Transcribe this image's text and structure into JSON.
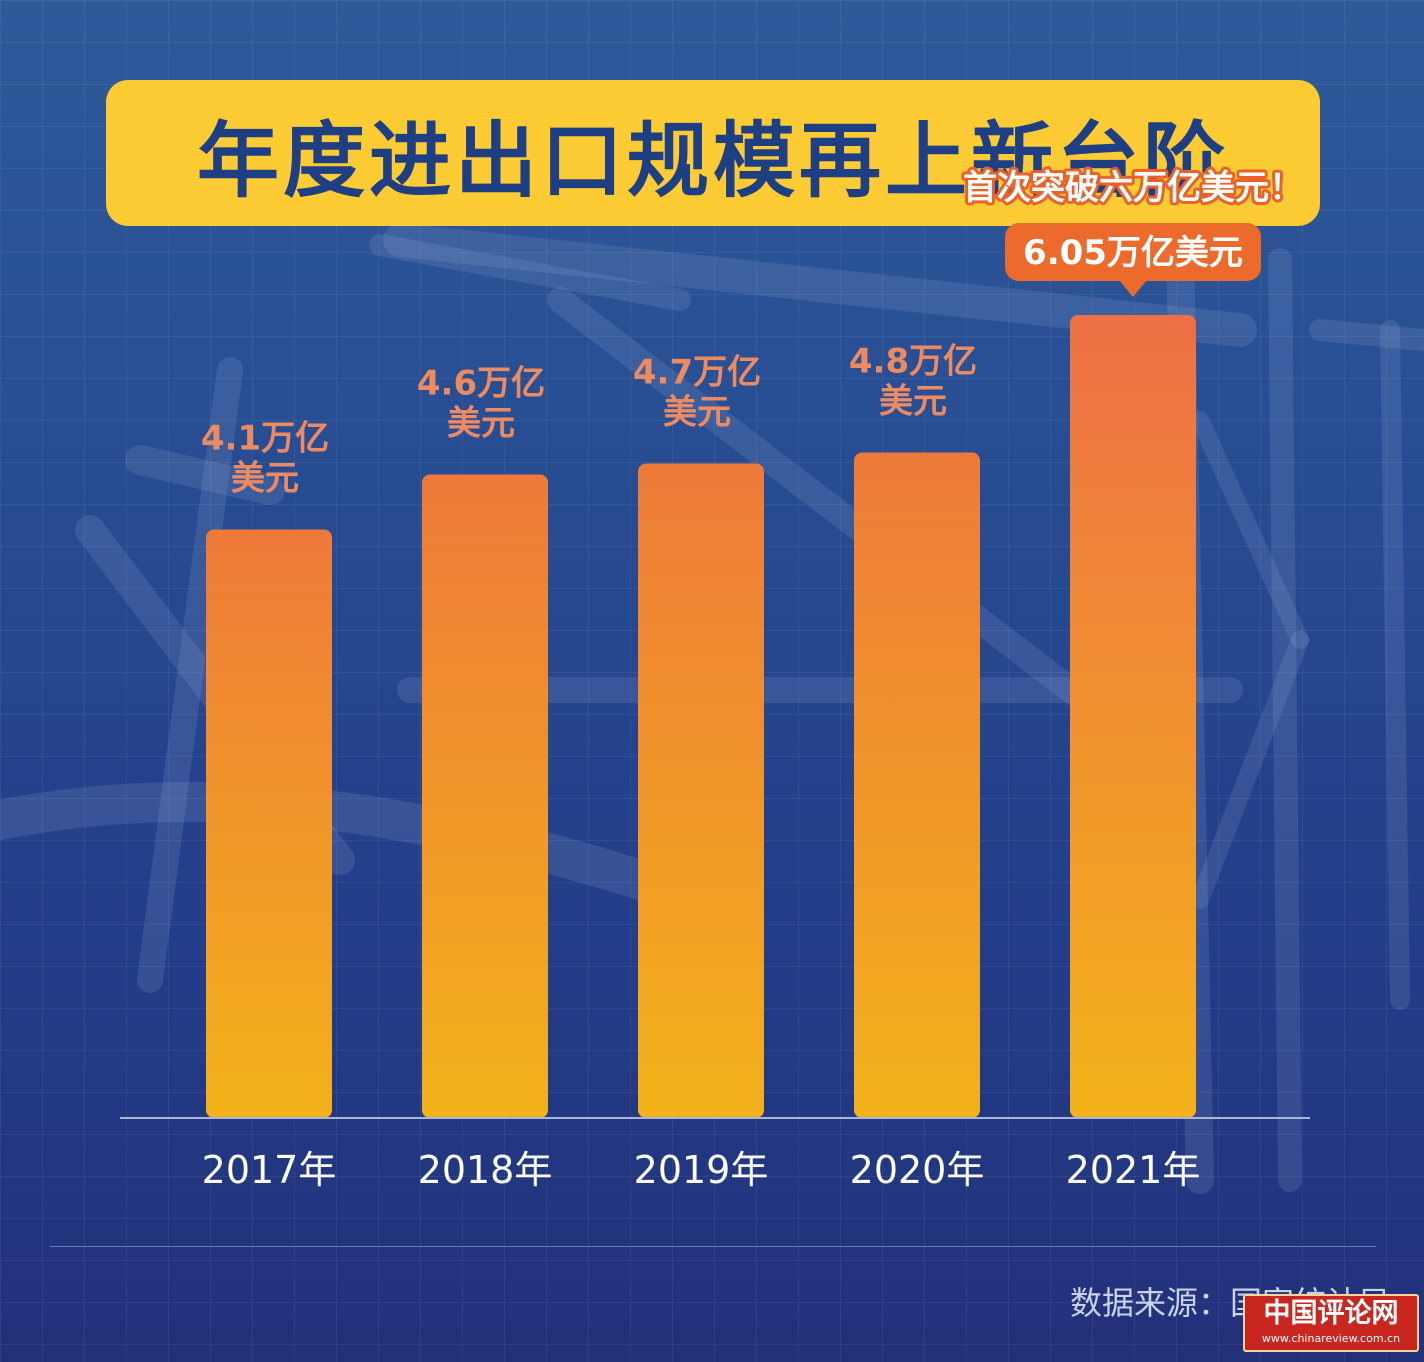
{
  "title": "年度进出口规模再上新台阶",
  "chart_data": {
    "type": "bar",
    "categories": [
      "2017年",
      "2018年",
      "2019年",
      "2020年",
      "2021年"
    ],
    "values": [
      4.1,
      4.6,
      4.7,
      4.8,
      6.05
    ],
    "data_labels": [
      [
        "4.1万亿",
        "美元"
      ],
      [
        "4.6万亿",
        "美元"
      ],
      [
        "4.7万亿",
        "美元"
      ],
      [
        "4.8万亿",
        "美元"
      ],
      [
        "6.05万亿美元"
      ]
    ],
    "annotation": "首次突破六万亿美元！",
    "highlight_index": 4,
    "title": "年度进出口规模再上新台阶",
    "xlabel": "",
    "ylabel": "",
    "unit": "万亿美元",
    "grid": false,
    "colors": {
      "bar_top": "#ee7a3a",
      "bar_bottom": "#f3b21a",
      "highlight_bar_top": "#ee7046",
      "label": "#ec8a62",
      "callout_bg": "#ec6a2c",
      "annotation": "#ffffff",
      "annotation_stroke": "#e8622a",
      "axis": "#a9b6d6",
      "tick_label": "#ffffff"
    }
  },
  "source": "数据来源：国家统计局",
  "watermark": {
    "text": "中国评论网",
    "url": "www.chinareview.com.cn"
  },
  "colors": {
    "title_bg": "#fdcb33",
    "title_text": "#1f3f84",
    "background": "#284e93"
  }
}
